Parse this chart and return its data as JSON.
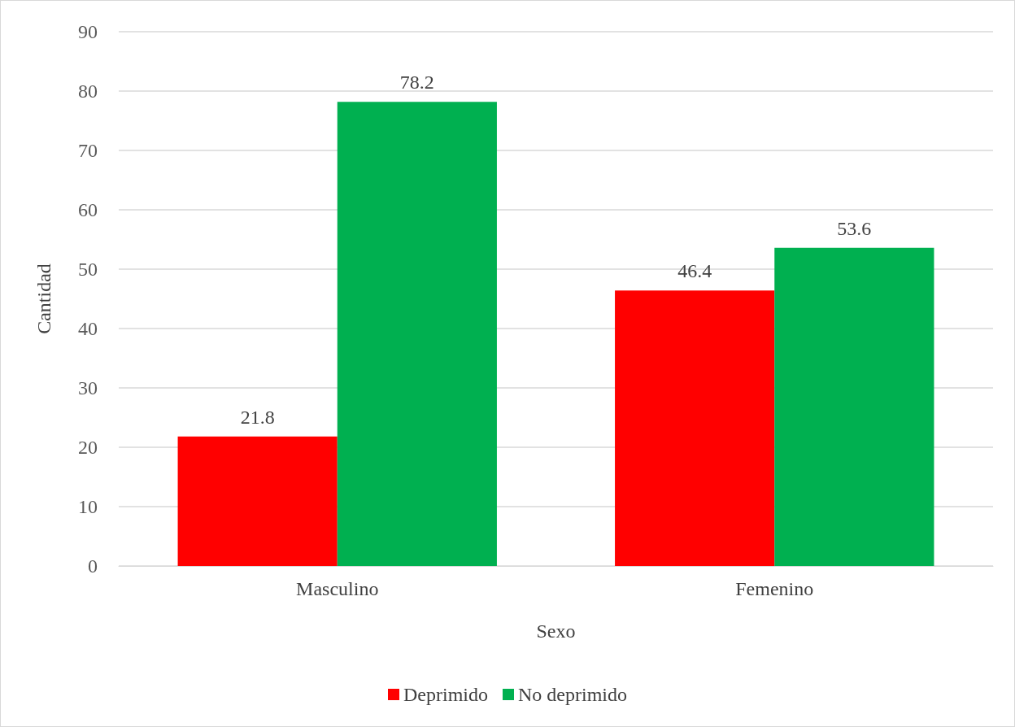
{
  "chart_data": {
    "type": "bar",
    "xlabel": "Sexo",
    "ylabel": "Cantidad",
    "categories": [
      "Masculino",
      "Femenino"
    ],
    "series": [
      {
        "name": "Deprimido",
        "color": "#ff0000",
        "values": [
          21.8,
          46.4
        ]
      },
      {
        "name": "No deprimido",
        "color": "#00b050",
        "values": [
          78.2,
          53.6
        ]
      }
    ],
    "ylim": [
      0,
      90
    ],
    "yticks": [
      0,
      10,
      20,
      30,
      40,
      50,
      60,
      70,
      80,
      90
    ],
    "grid": "y",
    "legend": "bottom",
    "data_labels": true
  }
}
